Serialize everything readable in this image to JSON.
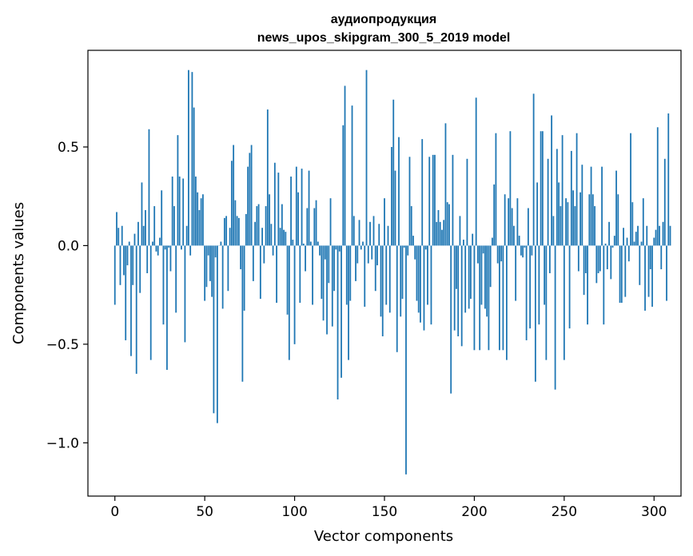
{
  "chart_data": {
    "type": "bar",
    "title_lines": [
      "аудиопродукция",
      "news_upos_skipgram_300_5_2019 model"
    ],
    "xlabel": "Vector components",
    "ylabel": "Components values",
    "xlim": [
      -15,
      315
    ],
    "ylim": [
      -1.27,
      0.99
    ],
    "xticks": [
      0,
      50,
      100,
      150,
      200,
      250,
      300
    ],
    "xtick_labels": [
      "0",
      "50",
      "100",
      "150",
      "200",
      "250",
      "300"
    ],
    "yticks": [
      -1.0,
      -0.5,
      0.0,
      0.5
    ],
    "ytick_labels": [
      "−1.0",
      "−0.5",
      "0.0",
      "0.5"
    ],
    "bar_color": "#1f77b4",
    "grid": false,
    "values": [
      -0.3,
      0.17,
      0.09,
      -0.2,
      0.1,
      -0.15,
      -0.48,
      -0.1,
      0.02,
      -0.56,
      -0.2,
      0.06,
      -0.65,
      0.12,
      -0.24,
      0.32,
      0.1,
      0.18,
      -0.14,
      0.59,
      -0.58,
      0.02,
      0.2,
      -0.03,
      -0.05,
      0.04,
      0.28,
      -0.4,
      -0.02,
      -0.63,
      -0.01,
      -0.13,
      0.35,
      0.2,
      -0.34,
      0.56,
      0.35,
      -0.02,
      0.34,
      -0.49,
      0.1,
      0.89,
      -0.05,
      0.88,
      0.7,
      0.35,
      0.27,
      0.18,
      0.24,
      0.26,
      -0.28,
      -0.21,
      -0.05,
      -0.18,
      -0.26,
      -0.85,
      -0.06,
      -0.9,
      0.0,
      0.02,
      -0.32,
      0.14,
      0.15,
      -0.23,
      0.09,
      0.43,
      0.51,
      0.23,
      0.15,
      0.14,
      -0.12,
      -0.69,
      -0.33,
      0.16,
      0.4,
      0.47,
      0.51,
      -0.18,
      0.12,
      0.2,
      0.21,
      -0.27,
      0.09,
      -0.09,
      0.2,
      0.69,
      0.26,
      0.11,
      -0.05,
      0.42,
      -0.29,
      0.37,
      0.09,
      0.21,
      0.08,
      0.07,
      -0.35,
      -0.58,
      0.35,
      0.03,
      -0.5,
      0.4,
      0.27,
      -0.29,
      0.39,
      0.01,
      -0.13,
      0.19,
      0.38,
      0.02,
      -0.3,
      0.19,
      0.23,
      0.02,
      -0.05,
      -0.27,
      -0.38,
      -0.07,
      -0.45,
      -0.19,
      0.24,
      -0.41,
      -0.23,
      -0.02,
      -0.78,
      -0.03,
      -0.67,
      0.61,
      0.81,
      -0.3,
      -0.58,
      -0.28,
      0.71,
      0.15,
      -0.18,
      -0.09,
      0.13,
      -0.02,
      0.02,
      -0.31,
      0.89,
      -0.09,
      0.12,
      -0.07,
      0.15,
      -0.23,
      -0.1,
      0.11,
      -0.36,
      -0.46,
      0.24,
      -0.3,
      0.1,
      -0.34,
      0.5,
      0.74,
      0.38,
      -0.54,
      0.55,
      -0.36,
      -0.27,
      -0.01,
      -1.16,
      -0.05,
      0.45,
      0.2,
      0.05,
      -0.07,
      -0.28,
      -0.34,
      -0.39,
      0.54,
      -0.43,
      -0.02,
      -0.3,
      0.45,
      -0.4,
      0.46,
      0.46,
      0.12,
      0.18,
      0.12,
      0.08,
      0.13,
      0.62,
      0.22,
      0.21,
      -0.75,
      0.46,
      -0.43,
      -0.22,
      -0.46,
      0.15,
      -0.51,
      0.03,
      -0.34,
      0.44,
      -0.32,
      -0.27,
      0.06,
      -0.53,
      0.75,
      -0.09,
      -0.53,
      -0.3,
      -0.04,
      -0.32,
      -0.36,
      -0.53,
      -0.21,
      0.04,
      0.31,
      0.57,
      -0.09,
      -0.53,
      -0.08,
      -0.53,
      0.26,
      -0.58,
      0.24,
      0.58,
      0.19,
      0.1,
      -0.28,
      0.24,
      0.05,
      -0.05,
      -0.06,
      -0.01,
      -0.48,
      0.19,
      -0.42,
      -0.05,
      0.77,
      -0.69,
      0.32,
      -0.4,
      0.58,
      0.58,
      -0.3,
      -0.58,
      0.44,
      -0.14,
      0.66,
      0.15,
      -0.73,
      0.49,
      0.32,
      0.2,
      0.56,
      -0.58,
      0.24,
      0.22,
      -0.42,
      0.48,
      0.28,
      0.2,
      0.57,
      -0.13,
      0.27,
      0.41,
      -0.25,
      -0.14,
      -0.4,
      0.26,
      0.4,
      0.26,
      0.2,
      -0.19,
      -0.14,
      -0.13,
      0.4,
      -0.4,
      0.01,
      -0.12,
      0.12,
      -0.17,
      -0.01,
      0.05,
      0.38,
      0.26,
      -0.29,
      -0.29,
      0.09,
      -0.26,
      0.04,
      -0.08,
      0.57,
      0.22,
      0.02,
      0.07,
      0.1,
      -0.2,
      0.02,
      0.24,
      -0.33,
      0.1,
      -0.26,
      -0.12,
      -0.31,
      0.04,
      0.08,
      0.6,
      0.1,
      -0.12,
      0.12,
      0.44,
      -0.28,
      0.67,
      0.1
    ]
  }
}
